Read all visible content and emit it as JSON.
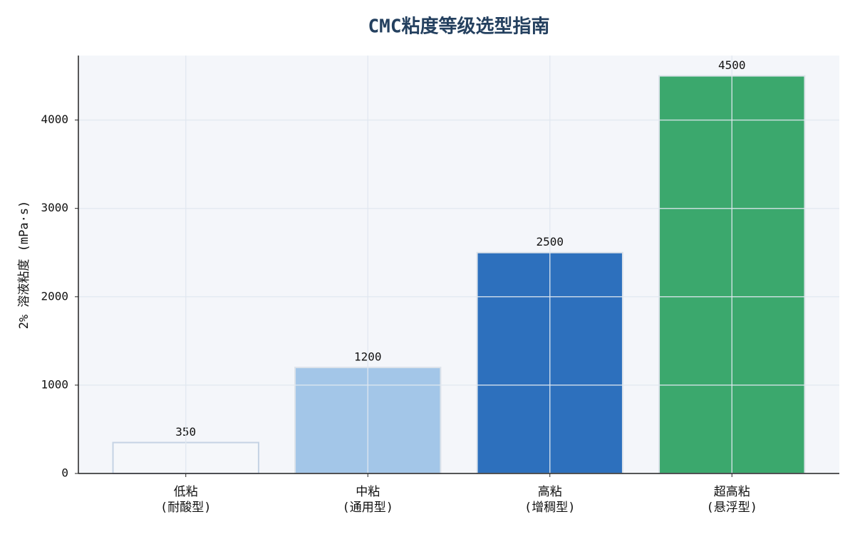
{
  "chart_data": {
    "type": "bar",
    "title": "CMC粘度等级选型指南",
    "y_label": "2% 溶液粘度 (mPa·s)",
    "categories": [
      "低粘\n(耐酸型)",
      "中粘\n(通用型)",
      "高粘\n(增稠型)",
      "超高粘\n(悬浮型)"
    ],
    "values": [
      350,
      1200,
      2500,
      4500
    ],
    "colors": [
      "#f5f7fa",
      "#a3c6e8",
      "#2d70bd",
      "#3ba86d"
    ],
    "ylim": [
      0,
      4730
    ],
    "yticks": [
      0,
      1000,
      2000,
      3000,
      4000
    ],
    "grid": true
  }
}
